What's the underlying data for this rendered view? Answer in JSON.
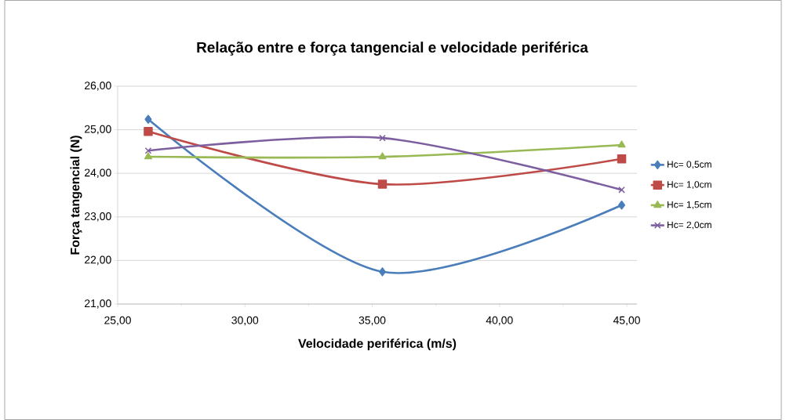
{
  "chart_data": {
    "type": "line",
    "title": "Relação entre e força tangencial e velocidade periférica",
    "xlabel": "Velocidade periférica (m/s)",
    "ylabel": "Força tangencial (N)",
    "x": [
      26.2,
      35.4,
      44.8
    ],
    "series": [
      {
        "name": "Hc= 0,5cm",
        "color": "#4a7ebb",
        "marker": "diamond",
        "values": [
          25.24,
          21.74,
          23.27
        ]
      },
      {
        "name": "Hc= 1,0cm",
        "color": "#be4b48",
        "marker": "square",
        "values": [
          24.96,
          23.75,
          24.33
        ]
      },
      {
        "name": "Hc= 1,5cm",
        "color": "#98b954",
        "marker": "triangle",
        "values": [
          24.38,
          24.38,
          24.65
        ]
      },
      {
        "name": "Hc= 2,0cm",
        "color": "#7d5fa0",
        "marker": "cross",
        "values": [
          24.52,
          24.81,
          23.62
        ]
      }
    ],
    "xlim": [
      25,
      45.4
    ],
    "ylim": [
      21,
      26
    ],
    "xticks": [
      {
        "value": 25,
        "label": "25,00"
      },
      {
        "value": 30,
        "label": "30,00"
      },
      {
        "value": 35,
        "label": "35,00"
      },
      {
        "value": 40,
        "label": "40,00"
      },
      {
        "value": 45,
        "label": "45,00"
      }
    ],
    "yticks": [
      {
        "value": 21,
        "label": "21,00"
      },
      {
        "value": 22,
        "label": "22,00"
      },
      {
        "value": 23,
        "label": "23,00"
      },
      {
        "value": 24,
        "label": "24,00"
      },
      {
        "value": 25,
        "label": "25,00"
      },
      {
        "value": 26,
        "label": "26,00"
      }
    ],
    "grid": "y",
    "legend": "right",
    "line_style": "solid"
  }
}
